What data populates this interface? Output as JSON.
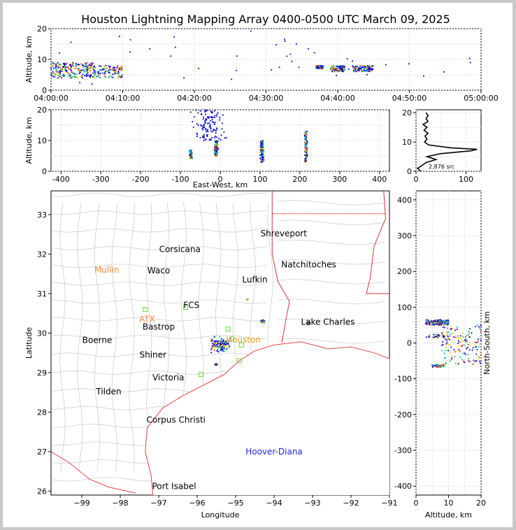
{
  "chart_data": [
    {
      "panel": "time-altitude",
      "type": "scatter",
      "title": "Houston Lightning Mapping Array 0400-0500 UTC March 09, 2025",
      "xlabel": "",
      "ylabel": "Altitude, km",
      "xlim_minutes": [
        0,
        60
      ],
      "ylim": [
        0,
        20
      ],
      "x_ticks": [
        "04:00:00",
        "04:10:00",
        "04:20:00",
        "04:30:00",
        "04:40:00",
        "04:50:00",
        "05:00:00"
      ],
      "y_ticks": [
        0,
        10,
        20
      ],
      "grid": true,
      "clusters": [
        {
          "t": [
            0,
            3
          ],
          "alt": [
            4,
            9
          ]
        },
        {
          "t": [
            3,
            6
          ],
          "alt": [
            4,
            9
          ]
        },
        {
          "t": [
            6,
            10
          ],
          "alt": [
            4,
            8
          ]
        },
        {
          "t": [
            37,
            38
          ],
          "alt": [
            7,
            8
          ]
        },
        {
          "t": [
            39,
            41
          ],
          "alt": [
            6,
            8
          ]
        },
        {
          "t": [
            42,
            45
          ],
          "alt": [
            6,
            8
          ]
        }
      ]
    },
    {
      "panel": "east-west-altitude",
      "type": "scatter",
      "xlabel": "East-West, km",
      "ylabel": "Altitude, km",
      "xlim": [
        -425,
        425
      ],
      "ylim": [
        0,
        20
      ],
      "x_ticks": [
        -400,
        -300,
        -200,
        -100,
        0,
        100,
        200,
        300,
        400
      ],
      "y_ticks": [
        0,
        10,
        20
      ],
      "grid": true,
      "clusters": [
        {
          "x": -75,
          "alt": [
            4,
            7
          ],
          "n": 20
        },
        {
          "x": -10,
          "alt": [
            5,
            10
          ],
          "n": 60
        },
        {
          "x": 105,
          "alt": [
            3,
            10
          ],
          "n": 70
        },
        {
          "x": 215,
          "alt": [
            3,
            13
          ],
          "n": 50
        },
        {
          "x": -30,
          "alt": [
            10,
            20
          ],
          "n": 60,
          "spread": 50
        }
      ]
    },
    {
      "panel": "altitude-histogram",
      "type": "line",
      "xlim": [
        0,
        130
      ],
      "ylim": [
        0,
        21
      ],
      "x_ticks": [
        0,
        100
      ],
      "y_ticks": [
        0,
        10,
        20
      ],
      "annotation": "2,876 src",
      "alt": [
        0,
        1,
        2,
        3,
        4,
        5,
        6,
        7,
        7.5,
        8,
        9,
        10,
        11,
        12,
        13,
        14,
        15,
        16,
        17,
        18,
        19,
        20
      ],
      "count": [
        10,
        3,
        12,
        20,
        40,
        22,
        48,
        110,
        122,
        70,
        25,
        17,
        22,
        18,
        24,
        16,
        22,
        14,
        24,
        20,
        24,
        20
      ]
    },
    {
      "panel": "map",
      "type": "scatter",
      "xlabel": "Longitude",
      "ylabel": "Latitude",
      "xlim": [
        -99.8,
        -91.0
      ],
      "ylim": [
        25.9,
        33.6
      ],
      "x_ticks": [
        -99,
        -98,
        -97,
        -96,
        -95,
        -94,
        -93,
        -92,
        -91
      ],
      "y_ticks": [
        26,
        27,
        28,
        29,
        30,
        31,
        32,
        33
      ],
      "clusters": [
        {
          "lon": -95.4,
          "lat": 29.7,
          "n": 70,
          "spread": 0.35
        },
        {
          "lon": -95.5,
          "lat": 29.2,
          "n": 10,
          "spread": 0.05
        },
        {
          "lon": -94.3,
          "lat": 30.3,
          "n": 20,
          "spread": 0.08
        },
        {
          "lon": -93.1,
          "lat": 30.25,
          "n": 20,
          "spread": 0.06
        },
        {
          "lon": -94.7,
          "lat": 30.85,
          "n": 4,
          "spread": 0.03
        }
      ],
      "cities": [
        {
          "name": "Shreveport",
          "lon": -93.75,
          "lat": 32.52,
          "color": "#000000"
        },
        {
          "name": "Corsicana",
          "lon": -96.45,
          "lat": 32.12,
          "color": "#000000"
        },
        {
          "name": "Natchitoches",
          "lon": -93.1,
          "lat": 31.73,
          "color": "#000000"
        },
        {
          "name": "Mullin",
          "lon": -98.35,
          "lat": 31.6,
          "color": "#ee8844"
        },
        {
          "name": "Waco",
          "lon": -97.0,
          "lat": 31.58,
          "color": "#000000"
        },
        {
          "name": "Lufkin",
          "lon": -94.5,
          "lat": 31.35,
          "color": "#000000"
        },
        {
          "name": "FCS",
          "lon": -96.15,
          "lat": 30.71,
          "color": "#000000"
        },
        {
          "name": "ATX",
          "lon": -97.3,
          "lat": 30.35,
          "color": "#ee8844"
        },
        {
          "name": "Bastrop",
          "lon": -97.0,
          "lat": 30.16,
          "color": "#000000"
        },
        {
          "name": "Lake Charles",
          "lon": -92.6,
          "lat": 30.28,
          "color": "#000000"
        },
        {
          "name": "Boerne",
          "lon": -98.6,
          "lat": 29.82,
          "color": "#000000"
        },
        {
          "name": "Houston",
          "lon": -94.8,
          "lat": 29.83,
          "color": "#ee9922"
        },
        {
          "name": "Shiner",
          "lon": -97.15,
          "lat": 29.45,
          "color": "#000000"
        },
        {
          "name": "Victoria",
          "lon": -96.75,
          "lat": 28.87,
          "color": "#000000"
        },
        {
          "name": "Tilden",
          "lon": -98.3,
          "lat": 28.52,
          "color": "#000000"
        },
        {
          "name": "Corpus Christi",
          "lon": -96.55,
          "lat": 27.8,
          "color": "#000000"
        },
        {
          "name": "Hoover-Diana",
          "lon": -94.0,
          "lat": 27.0,
          "color": "#2222dd"
        },
        {
          "name": "Port Isabel",
          "lon": -96.6,
          "lat": 26.12,
          "color": "#000000"
        }
      ],
      "stations": [
        {
          "lon": -97.35,
          "lat": 30.6
        },
        {
          "lon": -96.3,
          "lat": 30.65
        },
        {
          "lon": -95.1,
          "lat": 29.85
        },
        {
          "lon": -94.85,
          "lat": 29.7
        },
        {
          "lon": -94.9,
          "lat": 29.3
        },
        {
          "lon": -95.9,
          "lat": 28.95
        },
        {
          "lon": -95.2,
          "lat": 30.1
        }
      ]
    },
    {
      "panel": "altitude-north-south",
      "type": "scatter",
      "xlabel": "Altitude, km",
      "ylabel": "North-South, km",
      "xlim": [
        0,
        20
      ],
      "ylim": [
        -425,
        425
      ],
      "x_ticks": [
        0,
        10,
        20
      ],
      "y_ticks": [
        -400,
        -300,
        -200,
        -100,
        0,
        100,
        200,
        300,
        400
      ],
      "clusters": [
        {
          "alt": [
            3,
            10
          ],
          "ns": [
            50,
            65
          ],
          "n": 70
        },
        {
          "alt": [
            3,
            9
          ],
          "ns": [
            15,
            25
          ],
          "n": 15
        },
        {
          "alt": [
            5,
            9
          ],
          "ns": [
            -68,
            -60
          ],
          "n": 20
        },
        {
          "alt": [
            8,
            20
          ],
          "ns": [
            -60,
            50
          ],
          "n": 70
        }
      ]
    }
  ]
}
